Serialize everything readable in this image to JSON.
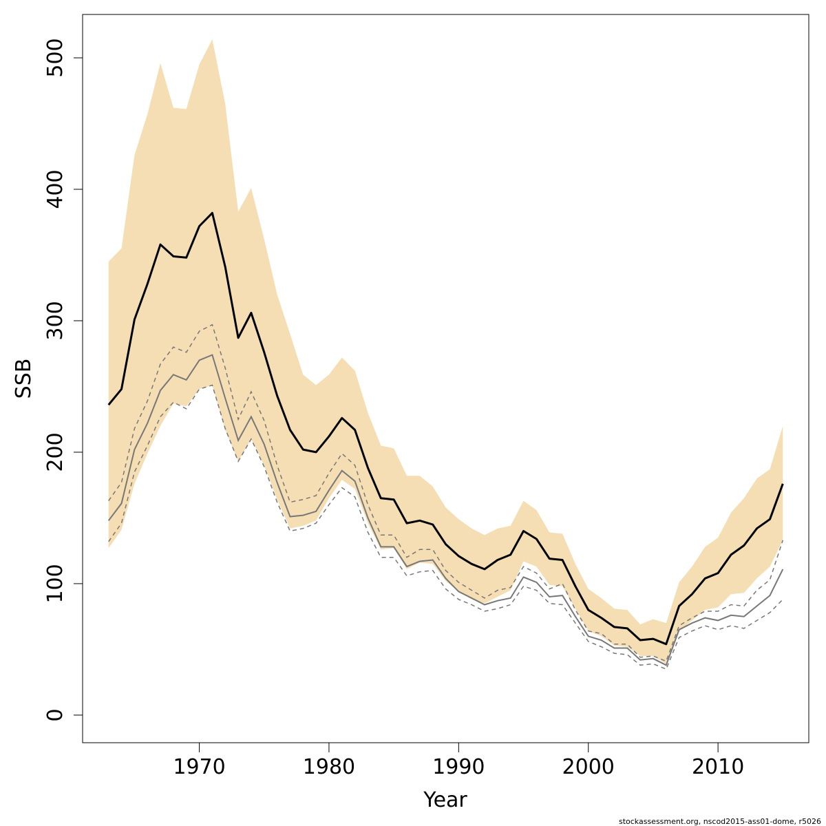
{
  "chart_data": {
    "type": "line",
    "title": "",
    "xlabel": "Year",
    "ylabel": "SSB",
    "xlim": [
      1961,
      2017
    ],
    "ylim": [
      -21,
      533
    ],
    "x_ticks": [
      1970,
      1980,
      1990,
      2000,
      2010
    ],
    "y_ticks": [
      0,
      100,
      200,
      300,
      400,
      500
    ],
    "grid": false,
    "legend": "none",
    "colors": {
      "band": "#F5DEB3",
      "estimate": "#000000",
      "comparison": "#777777"
    },
    "x": [
      1963,
      1964,
      1965,
      1966,
      1967,
      1968,
      1969,
      1970,
      1971,
      1972,
      1973,
      1974,
      1975,
      1976,
      1977,
      1978,
      1979,
      1980,
      1981,
      1982,
      1983,
      1984,
      1985,
      1986,
      1987,
      1988,
      1989,
      1990,
      1991,
      1992,
      1993,
      1994,
      1995,
      1996,
      1997,
      1998,
      1999,
      2000,
      2001,
      2002,
      2003,
      2004,
      2005,
      2006,
      2007,
      2008,
      2009,
      2010,
      2011,
      2012,
      2013,
      2014,
      2015
    ],
    "series": [
      {
        "role": "estimate",
        "values": [
          236,
          248,
          301,
          328,
          358,
          349,
          348,
          372,
          382,
          341,
          287,
          306,
          276,
          243,
          217,
          202,
          200,
          212,
          226,
          217,
          188,
          165,
          164,
          146,
          148,
          145,
          130,
          121,
          115,
          111,
          118,
          122,
          140,
          134,
          119,
          118,
          98,
          80,
          74,
          67,
          66,
          57,
          58,
          54,
          83,
          92,
          104,
          108,
          122,
          129,
          142,
          149,
          176
        ]
      },
      {
        "role": "estimate-upper",
        "values": [
          345,
          355,
          426,
          457,
          496,
          462,
          461,
          495,
          514,
          465,
          383,
          401,
          362,
          320,
          290,
          259,
          251,
          259,
          272,
          262,
          230,
          205,
          203,
          182,
          182,
          174,
          158,
          149,
          142,
          137,
          142,
          144,
          163,
          156,
          139,
          138,
          115,
          96,
          89,
          81,
          80,
          69,
          73,
          70,
          101,
          113,
          128,
          135,
          154,
          165,
          180,
          187,
          220
        ]
      },
      {
        "role": "estimate-lower",
        "values": [
          127,
          141,
          176,
          199,
          220,
          237,
          235,
          248,
          251,
          217,
          193,
          210,
          190,
          164,
          142,
          144,
          148,
          165,
          179,
          172,
          146,
          126,
          127,
          111,
          116,
          115,
          102,
          94,
          88,
          85,
          90,
          95,
          117,
          113,
          99,
          98,
          81,
          64,
          60,
          53,
          52,
          45,
          45,
          39,
          64,
          72,
          80,
          82,
          92,
          93,
          104,
          113,
          133
        ]
      },
      {
        "role": "comparison",
        "values": [
          148,
          161,
          202,
          222,
          247,
          259,
          255,
          270,
          274,
          241,
          209,
          227,
          206,
          177,
          151,
          152,
          155,
          171,
          186,
          178,
          150,
          128,
          128,
          113,
          117,
          118,
          104,
          94,
          89,
          84,
          87,
          89,
          105,
          101,
          90,
          91,
          75,
          60,
          57,
          51,
          51,
          42,
          43,
          38,
          65,
          70,
          74,
          72,
          76,
          75,
          83,
          91,
          111
        ]
      },
      {
        "role": "comparison-upper",
        "values": [
          163,
          177,
          218,
          239,
          267,
          280,
          276,
          292,
          297,
          264,
          225,
          246,
          224,
          190,
          162,
          164,
          167,
          184,
          199,
          190,
          160,
          137,
          137,
          120,
          126,
          126,
          110,
          101,
          95,
          89,
          95,
          97,
          113,
          108,
          96,
          100,
          80,
          64,
          62,
          54,
          54,
          44,
          45,
          41,
          68,
          74,
          79,
          79,
          84,
          83,
          95,
          103,
          133
        ]
      },
      {
        "role": "comparison-lower",
        "values": [
          132,
          146,
          185,
          205,
          227,
          238,
          233,
          248,
          251,
          218,
          193,
          210,
          189,
          162,
          140,
          142,
          146,
          160,
          173,
          166,
          139,
          120,
          120,
          106,
          109,
          110,
          96,
          88,
          84,
          79,
          81,
          84,
          98,
          95,
          85,
          84,
          70,
          56,
          52,
          47,
          46,
          38,
          39,
          35,
          59,
          64,
          68,
          65,
          68,
          66,
          72,
          78,
          88
        ]
      }
    ],
    "footnote": "stockassessment.org, nscod2015-ass01-dome, r5026"
  }
}
